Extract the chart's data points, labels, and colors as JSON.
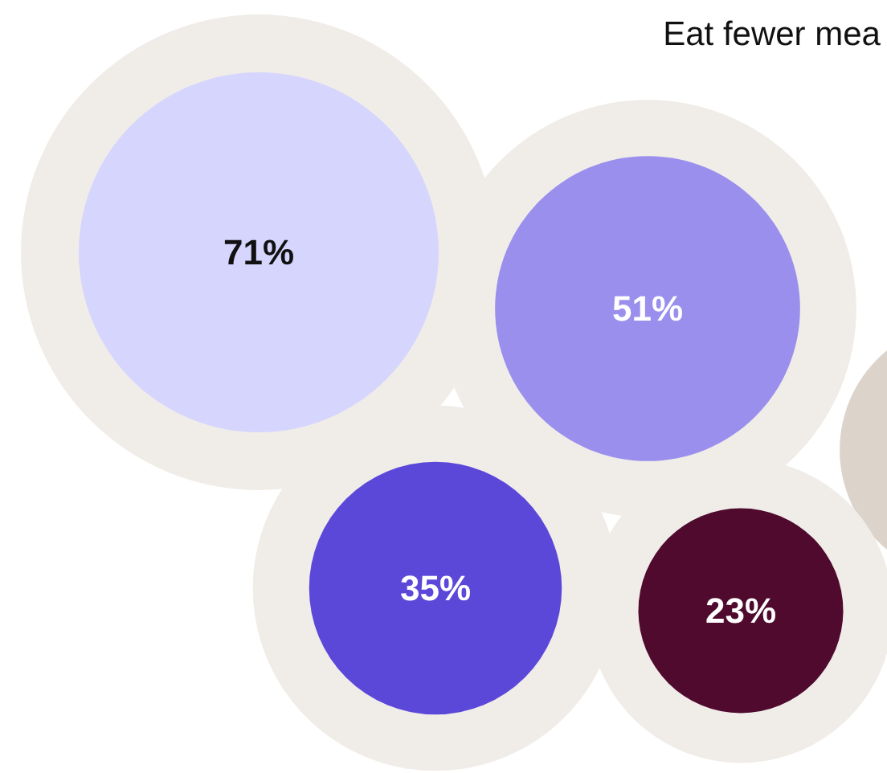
{
  "chart_data": {
    "type": "other",
    "title": "Eat fewer mea",
    "categories": [
      null,
      null,
      null,
      null
    ],
    "values": [
      71,
      51,
      35,
      23
    ],
    "colors": [
      "#d6d5fd",
      "#9a8fec",
      "#5b48d9",
      "#4f0a2e"
    ],
    "value_labels": [
      "71%",
      "51%",
      "35%",
      "23%"
    ]
  }
}
